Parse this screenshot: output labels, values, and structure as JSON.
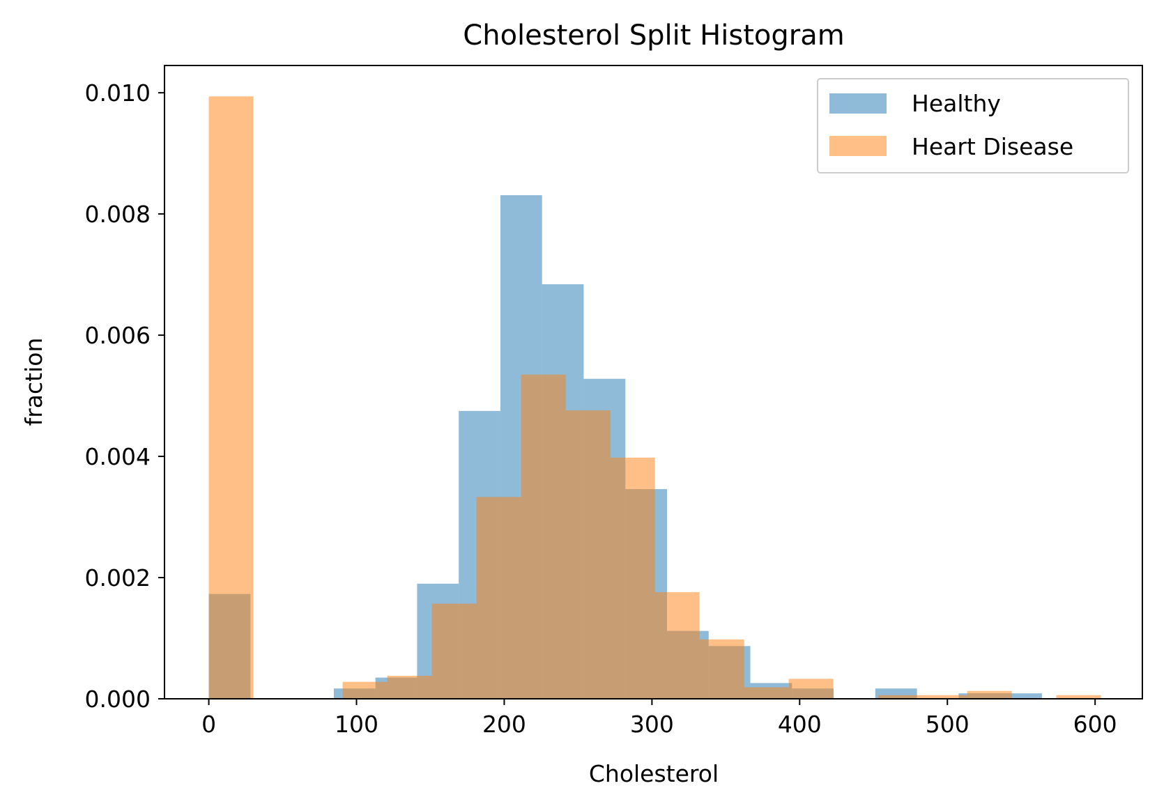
{
  "chart_data": {
    "type": "bar",
    "title": "Cholesterol Split Histogram",
    "xlabel": "Cholesterol",
    "ylabel": "fraction",
    "xlim": [
      -30,
      632
    ],
    "ylim": [
      0,
      0.01045
    ],
    "xticks": [
      0,
      100,
      200,
      300,
      400,
      500,
      600
    ],
    "yticks": [
      0.0,
      0.002,
      0.004,
      0.006,
      0.008,
      0.01
    ],
    "ytick_labels": [
      "0.000",
      "0.002",
      "0.004",
      "0.006",
      "0.008",
      "0.010"
    ],
    "legend_position": "top-right",
    "grid": false,
    "series": [
      {
        "name": "Healthy",
        "color": "#1f77b4",
        "alpha": 0.5,
        "bins": [
          {
            "x0": 0,
            "x1": 28.2,
            "y": 0.00173
          },
          {
            "x0": 84.6,
            "x1": 112.8,
            "y": 0.00017
          },
          {
            "x0": 112.8,
            "x1": 141.0,
            "y": 0.00035
          },
          {
            "x0": 141.0,
            "x1": 169.2,
            "y": 0.0019
          },
          {
            "x0": 169.2,
            "x1": 197.4,
            "y": 0.00475
          },
          {
            "x0": 197.4,
            "x1": 225.6,
            "y": 0.00831
          },
          {
            "x0": 225.6,
            "x1": 253.8,
            "y": 0.00684
          },
          {
            "x0": 253.8,
            "x1": 282.0,
            "y": 0.00528
          },
          {
            "x0": 282.0,
            "x1": 310.2,
            "y": 0.00346
          },
          {
            "x0": 310.2,
            "x1": 338.4,
            "y": 0.00112
          },
          {
            "x0": 338.4,
            "x1": 366.6,
            "y": 0.00087
          },
          {
            "x0": 366.6,
            "x1": 394.8,
            "y": 0.00026
          },
          {
            "x0": 394.8,
            "x1": 423.0,
            "y": 0.00017
          },
          {
            "x0": 451.2,
            "x1": 479.4,
            "y": 0.00017
          },
          {
            "x0": 507.6,
            "x1": 535.8,
            "y": 9e-05
          },
          {
            "x0": 535.8,
            "x1": 564.0,
            "y": 9e-05
          }
        ]
      },
      {
        "name": "Heart Disease",
        "color": "#ff7f0e",
        "alpha": 0.5,
        "bins": [
          {
            "x0": 0,
            "x1": 30.2,
            "y": 0.00994
          },
          {
            "x0": 90.6,
            "x1": 120.8,
            "y": 0.00028
          },
          {
            "x0": 120.8,
            "x1": 151.0,
            "y": 0.00038
          },
          {
            "x0": 151.0,
            "x1": 181.2,
            "y": 0.00157
          },
          {
            "x0": 181.2,
            "x1": 211.4,
            "y": 0.00333
          },
          {
            "x0": 211.4,
            "x1": 241.6,
            "y": 0.00535
          },
          {
            "x0": 241.6,
            "x1": 271.8,
            "y": 0.00476
          },
          {
            "x0": 271.8,
            "x1": 302.0,
            "y": 0.00398
          },
          {
            "x0": 302.0,
            "x1": 332.2,
            "y": 0.00176
          },
          {
            "x0": 332.2,
            "x1": 362.4,
            "y": 0.00098
          },
          {
            "x0": 362.4,
            "x1": 392.6,
            "y": 0.00019
          },
          {
            "x0": 392.6,
            "x1": 422.8,
            "y": 0.00033
          },
          {
            "x0": 453.0,
            "x1": 483.2,
            "y": 6e-05
          },
          {
            "x0": 483.2,
            "x1": 513.4,
            "y": 6e-05
          },
          {
            "x0": 513.4,
            "x1": 543.6,
            "y": 0.00013
          },
          {
            "x0": 573.8,
            "x1": 604.0,
            "y": 6e-05
          }
        ]
      }
    ]
  }
}
